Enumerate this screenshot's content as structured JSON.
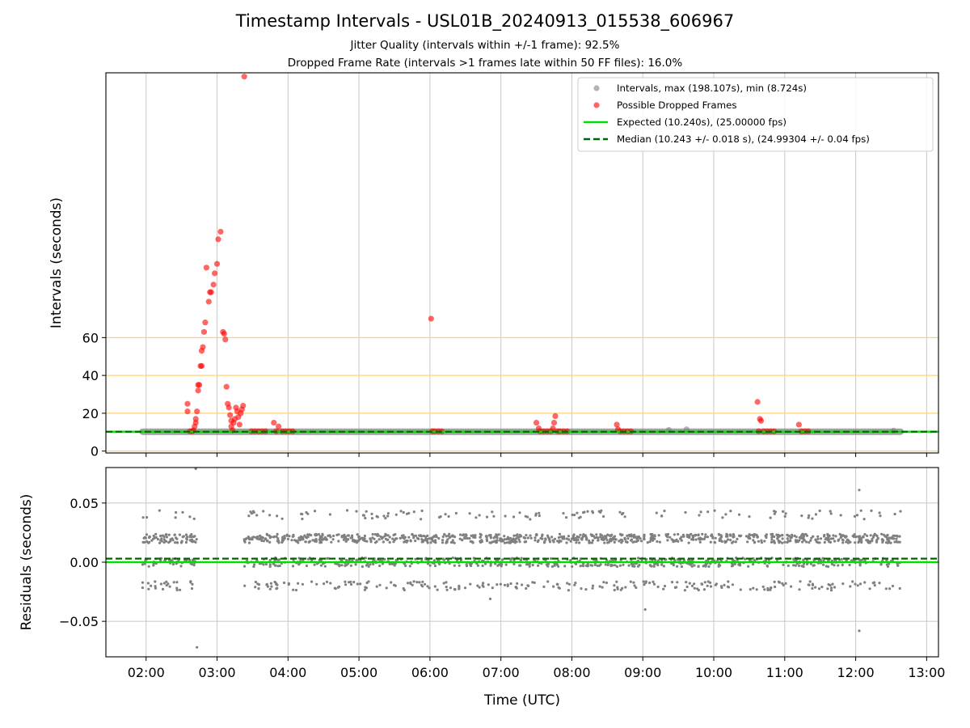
{
  "header": {
    "title": "Timestamp Intervals - USL01B_20240913_015538_606967",
    "subtitle1": "Jitter Quality (intervals within +/-1 frame): 92.5%",
    "subtitle2": "Dropped Frame Rate (intervals >1 frames late within 50 FF files): 16.0%"
  },
  "colors": {
    "intervals": "#808080",
    "dropped": "#ff0000",
    "expected": "#00e000",
    "median": "#006400",
    "threshold_lines": "#ffd27a",
    "grid": "#c8c8c8"
  },
  "chart_data": [
    {
      "type": "scatter",
      "ylabel": "Intervals (seconds)",
      "xlabel": "",
      "xlim": [
        "01:26",
        "13:10"
      ],
      "ylim": [
        -1,
        200
      ],
      "yticks": [
        0,
        20,
        40,
        60
      ],
      "threshold_lines_y": [
        0,
        20,
        40,
        60
      ],
      "grid": true,
      "legend_position": "top-right",
      "legend": [
        "Intervals, max (198.107s), min (8.724s)",
        "Possible Dropped Frames",
        "Expected (10.240s), (25.00000 fps)",
        "Median (10.243 +/- 0.018 s), (24.99304 +/- 0.04 fps)"
      ],
      "expected_y": 10.24,
      "median_y": 10.243,
      "intervals": {
        "x_range": [
          "01:57",
          "12:38"
        ],
        "y_typical": 10.24,
        "outliers": [
          {
            "x": "09:22",
            "y": 11.2
          },
          {
            "x": "09:37",
            "y": 11.5
          },
          {
            "x": "12:32",
            "y": 10.8
          }
        ]
      },
      "dropped_frames": [
        {
          "x": "02:35",
          "y": 25
        },
        {
          "x": "02:35",
          "y": 21
        },
        {
          "x": "02:37",
          "y": 10.5
        },
        {
          "x": "02:39",
          "y": 10.5
        },
        {
          "x": "02:40",
          "y": 11
        },
        {
          "x": "02:41",
          "y": 13
        },
        {
          "x": "02:42",
          "y": 15
        },
        {
          "x": "02:42",
          "y": 17
        },
        {
          "x": "02:43",
          "y": 21
        },
        {
          "x": "02:44",
          "y": 32
        },
        {
          "x": "02:44",
          "y": 35
        },
        {
          "x": "02:45",
          "y": 35
        },
        {
          "x": "02:46",
          "y": 45
        },
        {
          "x": "02:47",
          "y": 45
        },
        {
          "x": "02:47",
          "y": 53
        },
        {
          "x": "02:48",
          "y": 55
        },
        {
          "x": "02:49",
          "y": 63
        },
        {
          "x": "02:50",
          "y": 68
        },
        {
          "x": "02:51",
          "y": 97
        },
        {
          "x": "02:53",
          "y": 79
        },
        {
          "x": "02:54",
          "y": 84
        },
        {
          "x": "02:55",
          "y": 84
        },
        {
          "x": "02:57",
          "y": 88
        },
        {
          "x": "02:58",
          "y": 94
        },
        {
          "x": "03:00",
          "y": 99
        },
        {
          "x": "03:01",
          "y": 112
        },
        {
          "x": "03:03",
          "y": 116
        },
        {
          "x": "03:05",
          "y": 63
        },
        {
          "x": "03:06",
          "y": 62
        },
        {
          "x": "03:07",
          "y": 59
        },
        {
          "x": "03:08",
          "y": 34
        },
        {
          "x": "03:09",
          "y": 25
        },
        {
          "x": "03:10",
          "y": 23
        },
        {
          "x": "03:11",
          "y": 19
        },
        {
          "x": "03:12",
          "y": 16
        },
        {
          "x": "03:12",
          "y": 13
        },
        {
          "x": "03:13",
          "y": 11
        },
        {
          "x": "03:14",
          "y": 15
        },
        {
          "x": "03:15",
          "y": 17
        },
        {
          "x": "03:16",
          "y": 23
        },
        {
          "x": "03:17",
          "y": 21
        },
        {
          "x": "03:18",
          "y": 18
        },
        {
          "x": "03:19",
          "y": 14
        },
        {
          "x": "03:20",
          "y": 20
        },
        {
          "x": "03:21",
          "y": 22
        },
        {
          "x": "03:22",
          "y": 24
        },
        {
          "x": "03:23",
          "y": 198
        },
        {
          "x": "03:29",
          "y": 10.5
        },
        {
          "x": "03:32",
          "y": 10.5
        },
        {
          "x": "03:35",
          "y": 10.5
        },
        {
          "x": "03:38",
          "y": 10.5
        },
        {
          "x": "03:41",
          "y": 10.5
        },
        {
          "x": "03:48",
          "y": 15
        },
        {
          "x": "03:50",
          "y": 10.5
        },
        {
          "x": "03:52",
          "y": 13
        },
        {
          "x": "03:55",
          "y": 10.5
        },
        {
          "x": "03:58",
          "y": 10.5
        },
        {
          "x": "04:01",
          "y": 10.5
        },
        {
          "x": "04:04",
          "y": 10.5
        },
        {
          "x": "06:01",
          "y": 70
        },
        {
          "x": "06:02",
          "y": 10.5
        },
        {
          "x": "06:04",
          "y": 10.5
        },
        {
          "x": "06:07",
          "y": 10.5
        },
        {
          "x": "06:10",
          "y": 10.5
        },
        {
          "x": "07:30",
          "y": 15
        },
        {
          "x": "07:32",
          "y": 12
        },
        {
          "x": "07:33",
          "y": 10.5
        },
        {
          "x": "07:36",
          "y": 10.5
        },
        {
          "x": "07:39",
          "y": 10.5
        },
        {
          "x": "07:42",
          "y": 10.5
        },
        {
          "x": "07:44",
          "y": 12
        },
        {
          "x": "07:45",
          "y": 15
        },
        {
          "x": "07:46",
          "y": 18.5
        },
        {
          "x": "07:48",
          "y": 10.5
        },
        {
          "x": "07:50",
          "y": 10.5
        },
        {
          "x": "07:53",
          "y": 10.5
        },
        {
          "x": "07:56",
          "y": 10.5
        },
        {
          "x": "08:38",
          "y": 14
        },
        {
          "x": "08:39",
          "y": 11.5
        },
        {
          "x": "08:41",
          "y": 10.5
        },
        {
          "x": "08:44",
          "y": 10.5
        },
        {
          "x": "08:47",
          "y": 10.5
        },
        {
          "x": "08:50",
          "y": 10.5
        },
        {
          "x": "10:37",
          "y": 26
        },
        {
          "x": "10:38",
          "y": 10.5
        },
        {
          "x": "10:39",
          "y": 17
        },
        {
          "x": "10:40",
          "y": 16
        },
        {
          "x": "10:42",
          "y": 10.5
        },
        {
          "x": "10:45",
          "y": 10.5
        },
        {
          "x": "10:48",
          "y": 10.5
        },
        {
          "x": "10:51",
          "y": 10.5
        },
        {
          "x": "11:12",
          "y": 14
        },
        {
          "x": "11:14",
          "y": 10.5
        },
        {
          "x": "11:17",
          "y": 10.5
        },
        {
          "x": "11:20",
          "y": 10.5
        }
      ]
    },
    {
      "type": "scatter",
      "ylabel": "Residuals (seconds)",
      "xlabel": "Time (UTC)",
      "xlim": [
        "01:26",
        "13:10"
      ],
      "ylim": [
        -0.08,
        0.08
      ],
      "yticks": [
        -0.05,
        0.0,
        0.05
      ],
      "ytick_labels": [
        "−0.05",
        "0.00",
        "0.05"
      ],
      "xticks": [
        "02:00",
        "03:00",
        "04:00",
        "05:00",
        "06:00",
        "07:00",
        "08:00",
        "09:00",
        "10:00",
        "11:00",
        "12:00",
        "13:00"
      ],
      "grid": true,
      "expected_y": 0.0,
      "median_y": 0.003,
      "residual_bands": [
        0.02,
        0.0,
        -0.02,
        0.04
      ],
      "segments": [
        {
          "start": "01:57",
          "end": "02:43"
        },
        {
          "start": "03:23",
          "end": "12:38"
        }
      ],
      "outliers": [
        {
          "x": "02:42",
          "y": 0.079
        },
        {
          "x": "02:43",
          "y": -0.072
        },
        {
          "x": "09:02",
          "y": -0.04
        },
        {
          "x": "12:03",
          "y": 0.061
        },
        {
          "x": "12:03",
          "y": -0.058
        },
        {
          "x": "06:51",
          "y": -0.031
        }
      ]
    }
  ]
}
